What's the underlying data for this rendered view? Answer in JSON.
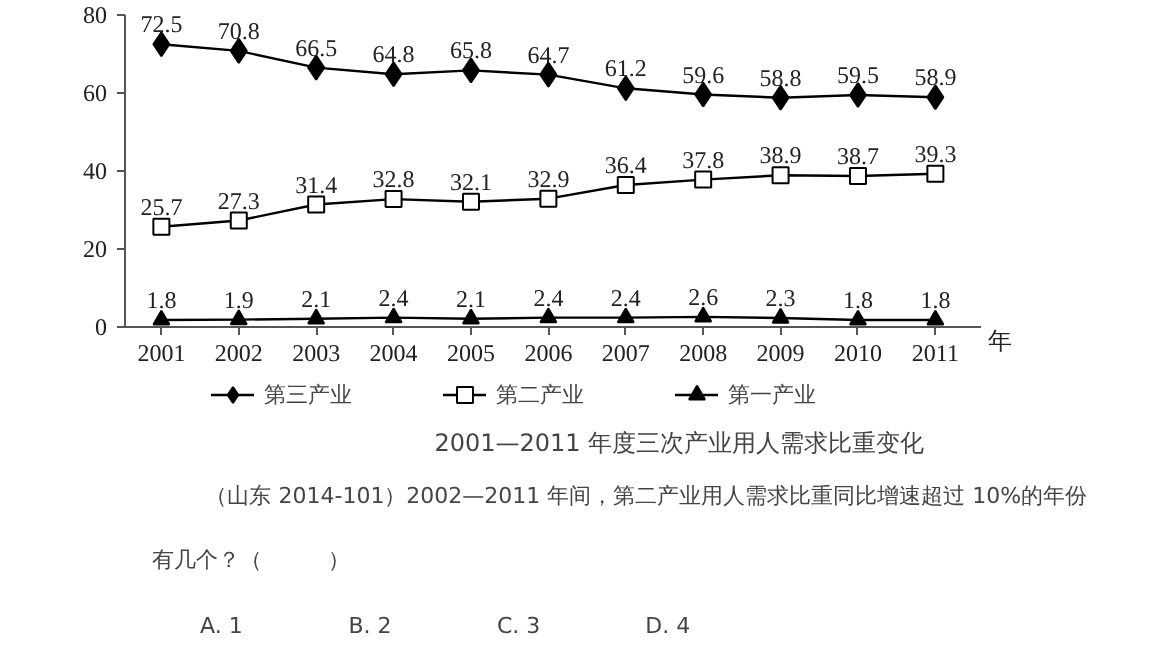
{
  "chart_data": {
    "type": "line",
    "title": "2001—2011 年度三次产业用人需求比重变化",
    "xlabel": "年",
    "categories": [
      "2001",
      "2002",
      "2003",
      "2004",
      "2005",
      "2006",
      "2007",
      "2008",
      "2009",
      "2010",
      "2011"
    ],
    "series": [
      {
        "name": "第三产业",
        "color": "#000000",
        "marker": "diamond",
        "values": [
          72.5,
          70.8,
          66.5,
          64.8,
          65.8,
          64.7,
          61.2,
          59.6,
          58.8,
          59.5,
          58.9
        ]
      },
      {
        "name": "第二产业",
        "color": "#000000",
        "marker": "square",
        "values": [
          25.7,
          27.3,
          31.4,
          32.8,
          32.1,
          32.9,
          36.4,
          37.8,
          38.9,
          38.7,
          39.3
        ]
      },
      {
        "name": "第一产业",
        "color": "#000000",
        "marker": "triangle",
        "values": [
          1.8,
          1.9,
          2.1,
          2.4,
          2.1,
          2.4,
          2.4,
          2.6,
          2.3,
          1.8,
          1.8
        ]
      }
    ],
    "ylim": [
      0,
      80
    ],
    "yticks": [
      0,
      20,
      40,
      60,
      80
    ],
    "data_labels": true,
    "grid": false,
    "legend": "bottom",
    "line_style": "solid",
    "annotations": [
      "（山东 2014-101）2002—2011 年间，第二产业用人需求比重同比增速超过 10%的年份",
      "有几个？（　　　）",
      "A. 1",
      "B. 2",
      "C. 3",
      "D. 4"
    ]
  }
}
